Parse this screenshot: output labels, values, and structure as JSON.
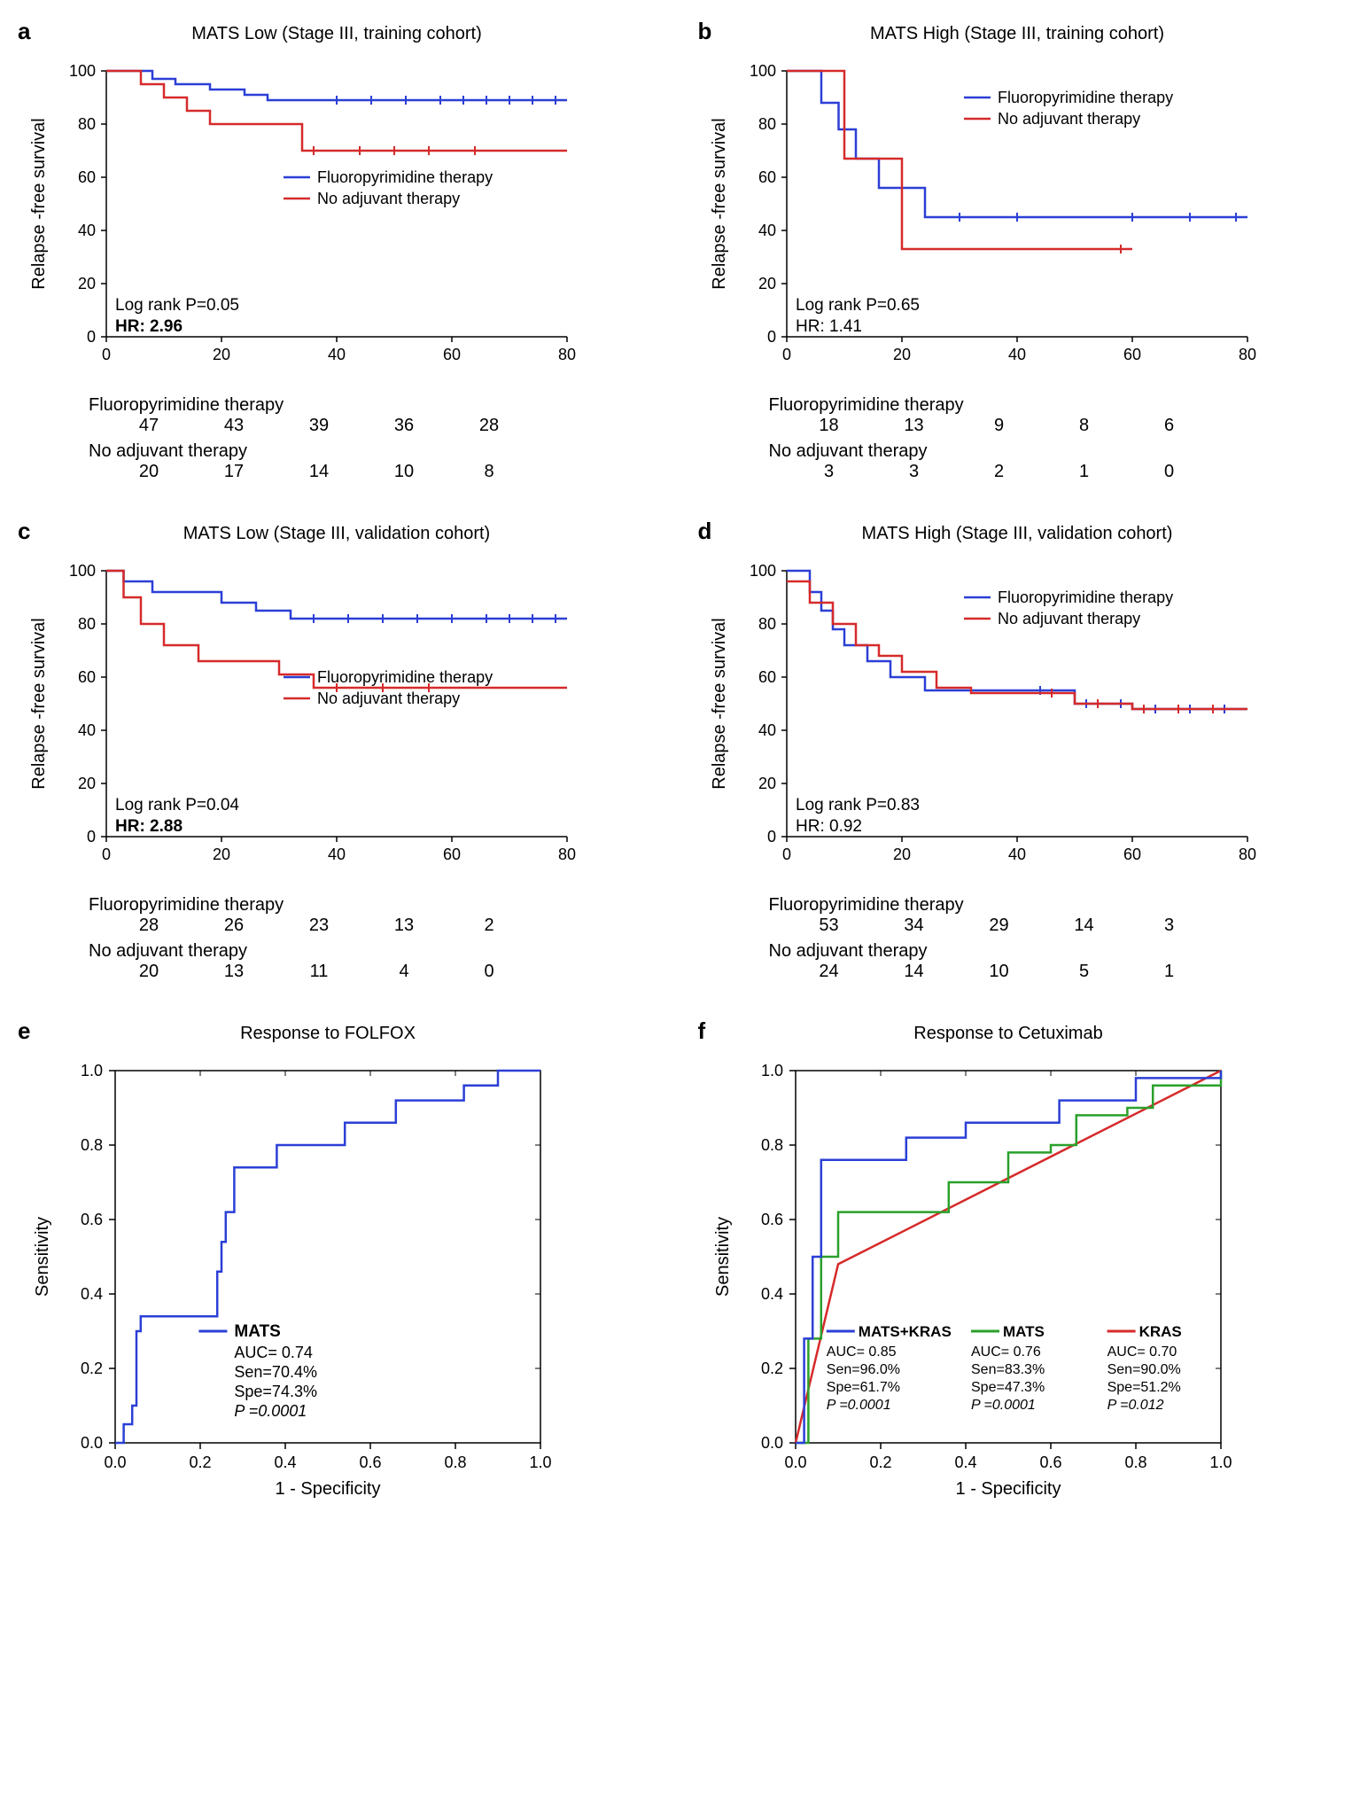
{
  "colors": {
    "blue": "#2b3fd6",
    "red": "#d62a2a",
    "green": "#2aa02a",
    "axis": "#000000",
    "bg": "#ffffff"
  },
  "km": {
    "ylabel": "Relapse -free survival",
    "xmax": 80,
    "ymax": 100,
    "xticks": [
      0,
      20,
      40,
      60,
      80
    ],
    "yticks": [
      0,
      20,
      40,
      60,
      80,
      100
    ],
    "legend_fp": "Fluoropyrimidine therapy",
    "legend_na": "No adjuvant therapy"
  },
  "panels": {
    "a": {
      "label": "a",
      "title": "MATS Low (Stage III, training cohort)",
      "log": "Log rank P=0.05",
      "hr": "HR: 2.96",
      "hr_bold": true,
      "fp_line": [
        [
          0,
          100
        ],
        [
          3,
          100
        ],
        [
          8,
          97
        ],
        [
          12,
          95
        ],
        [
          18,
          93
        ],
        [
          24,
          91
        ],
        [
          28,
          89
        ],
        [
          34,
          89
        ],
        [
          80,
          89
        ]
      ],
      "fp_ticks": [
        40,
        46,
        52,
        58,
        62,
        66,
        70,
        74,
        78
      ],
      "na_line": [
        [
          0,
          100
        ],
        [
          6,
          95
        ],
        [
          10,
          90
        ],
        [
          14,
          85
        ],
        [
          18,
          80
        ],
        [
          22,
          80
        ],
        [
          30,
          80
        ],
        [
          34,
          70
        ],
        [
          80,
          70
        ]
      ],
      "na_ticks": [
        36,
        44,
        50,
        56,
        64
      ],
      "risk_header_fp": "Fluoropyrimidine therapy",
      "risk_fp": [
        "47",
        "43",
        "39",
        "36",
        "28"
      ],
      "risk_header_na": "No adjuvant therapy",
      "risk_na": [
        "20",
        "17",
        "14",
        "10",
        "8"
      ]
    },
    "b": {
      "label": "b",
      "title": "MATS High (Stage III, training cohort)",
      "log": "Log rank P=0.65",
      "hr": "HR: 1.41",
      "hr_bold": false,
      "fp_line": [
        [
          0,
          100
        ],
        [
          3,
          100
        ],
        [
          6,
          88
        ],
        [
          9,
          78
        ],
        [
          12,
          67
        ],
        [
          16,
          56
        ],
        [
          20,
          56
        ],
        [
          24,
          45
        ],
        [
          80,
          45
        ]
      ],
      "fp_ticks": [
        30,
        40,
        60,
        70,
        78
      ],
      "na_line": [
        [
          0,
          100
        ],
        [
          6,
          100
        ],
        [
          10,
          67
        ],
        [
          14,
          67
        ],
        [
          20,
          33
        ],
        [
          60,
          33
        ]
      ],
      "na_ticks": [
        58
      ],
      "risk_header_fp": "Fluoropyrimidine therapy",
      "risk_fp": [
        "18",
        "13",
        "9",
        "8",
        "6"
      ],
      "risk_header_na": "No adjuvant therapy",
      "risk_na": [
        "3",
        "3",
        "2",
        "1",
        "0"
      ]
    },
    "c": {
      "label": "c",
      "title": "MATS Low (Stage III, validation cohort)",
      "log": "Log rank P=0.04",
      "hr": "HR: 2.88",
      "hr_bold": true,
      "fp_line": [
        [
          0,
          100
        ],
        [
          3,
          96
        ],
        [
          8,
          92
        ],
        [
          14,
          92
        ],
        [
          20,
          88
        ],
        [
          26,
          85
        ],
        [
          32,
          82
        ],
        [
          80,
          82
        ]
      ],
      "fp_ticks": [
        36,
        42,
        48,
        54,
        60,
        66,
        70,
        74,
        78
      ],
      "na_line": [
        [
          0,
          100
        ],
        [
          3,
          90
        ],
        [
          6,
          80
        ],
        [
          10,
          72
        ],
        [
          16,
          66
        ],
        [
          22,
          66
        ],
        [
          30,
          61
        ],
        [
          36,
          56
        ],
        [
          80,
          56
        ]
      ],
      "na_ticks": [
        40,
        48,
        56
      ],
      "risk_header_fp": "Fluoropyrimidine therapy",
      "risk_fp": [
        "28",
        "26",
        "23",
        "13",
        "2"
      ],
      "risk_header_na": "No adjuvant therapy",
      "risk_na": [
        "20",
        "13",
        "11",
        "4",
        "0"
      ]
    },
    "d": {
      "label": "d",
      "title": "MATS High (Stage III, validation cohort)",
      "log": "Log rank P=0.83",
      "hr": "HR: 0.92",
      "hr_bold": false,
      "fp_line": [
        [
          0,
          100
        ],
        [
          2,
          100
        ],
        [
          4,
          92
        ],
        [
          6,
          85
        ],
        [
          8,
          78
        ],
        [
          10,
          72
        ],
        [
          14,
          66
        ],
        [
          18,
          60
        ],
        [
          24,
          55
        ],
        [
          40,
          55
        ],
        [
          50,
          50
        ],
        [
          60,
          48
        ],
        [
          80,
          48
        ]
      ],
      "fp_ticks": [
        44,
        52,
        58,
        64,
        70,
        76
      ],
      "na_line": [
        [
          0,
          96
        ],
        [
          4,
          88
        ],
        [
          8,
          80
        ],
        [
          12,
          72
        ],
        [
          16,
          68
        ],
        [
          20,
          62
        ],
        [
          26,
          56
        ],
        [
          32,
          54
        ],
        [
          44,
          54
        ],
        [
          50,
          50
        ],
        [
          60,
          48
        ],
        [
          80,
          48
        ]
      ],
      "na_ticks": [
        46,
        54,
        62,
        68,
        74
      ],
      "risk_header_fp": "Fluoropyrimidine therapy",
      "risk_fp": [
        "53",
        "34",
        "29",
        "14",
        "3"
      ],
      "risk_header_na": "No adjuvant therapy",
      "risk_na": [
        "24",
        "14",
        "10",
        "5",
        "1"
      ]
    }
  },
  "roc": {
    "xlabel": "1 - Specificity",
    "ylabel": "Sensitivity",
    "ticks": [
      "0.0",
      "0.2",
      "0.4",
      "0.6",
      "0.8",
      "1.0"
    ]
  },
  "panel_e": {
    "label": "e",
    "title": "Response to FOLFOX",
    "curve": [
      [
        0,
        0
      ],
      [
        0.02,
        0.05
      ],
      [
        0.04,
        0.1
      ],
      [
        0.05,
        0.3
      ],
      [
        0.06,
        0.34
      ],
      [
        0.22,
        0.34
      ],
      [
        0.24,
        0.46
      ],
      [
        0.25,
        0.54
      ],
      [
        0.26,
        0.62
      ],
      [
        0.28,
        0.74
      ],
      [
        0.34,
        0.74
      ],
      [
        0.38,
        0.8
      ],
      [
        0.48,
        0.8
      ],
      [
        0.54,
        0.86
      ],
      [
        0.62,
        0.86
      ],
      [
        0.66,
        0.92
      ],
      [
        0.78,
        0.92
      ],
      [
        0.82,
        0.96
      ],
      [
        0.9,
        1.0
      ],
      [
        1.0,
        1.0
      ]
    ],
    "stats": {
      "name": "MATS",
      "auc": "AUC= 0.74",
      "sen": "Sen=70.4%",
      "spe": "Spe=74.3%",
      "p": "P =0.0001"
    }
  },
  "panel_f": {
    "label": "f",
    "title": "Response to Cetuximab",
    "curves": {
      "matskras": [
        [
          0,
          0
        ],
        [
          0.02,
          0.28
        ],
        [
          0.04,
          0.5
        ],
        [
          0.06,
          0.76
        ],
        [
          0.22,
          0.76
        ],
        [
          0.26,
          0.82
        ],
        [
          0.4,
          0.86
        ],
        [
          0.58,
          0.86
        ],
        [
          0.62,
          0.92
        ],
        [
          0.74,
          0.92
        ],
        [
          0.8,
          0.98
        ],
        [
          1.0,
          1.0
        ]
      ],
      "mats": [
        [
          0,
          0
        ],
        [
          0.03,
          0.28
        ],
        [
          0.06,
          0.5
        ],
        [
          0.1,
          0.62
        ],
        [
          0.3,
          0.62
        ],
        [
          0.36,
          0.7
        ],
        [
          0.44,
          0.7
        ],
        [
          0.5,
          0.78
        ],
        [
          0.6,
          0.8
        ],
        [
          0.66,
          0.88
        ],
        [
          0.78,
          0.9
        ],
        [
          0.84,
          0.96
        ],
        [
          1.0,
          1.0
        ]
      ],
      "kras": [
        [
          0,
          0
        ],
        [
          0.1,
          0.48
        ],
        [
          1.0,
          1.0
        ]
      ]
    },
    "stats": [
      {
        "name": "MATS+KRAS",
        "auc": "AUC= 0.85",
        "sen": "Sen=96.0%",
        "spe": "Spe=61.7%",
        "p": "P =0.0001",
        "color": "#2b3fd6"
      },
      {
        "name": "MATS",
        "auc": "AUC= 0.76",
        "sen": "Sen=83.3%",
        "spe": "Spe=47.3%",
        "p": "P =0.0001",
        "color": "#2aa02a"
      },
      {
        "name": "KRAS",
        "auc": "AUC= 0.70",
        "sen": "Sen=90.0%",
        "spe": "Spe=51.2%",
        "p": "P =0.012",
        "color": "#d62a2a"
      }
    ]
  }
}
